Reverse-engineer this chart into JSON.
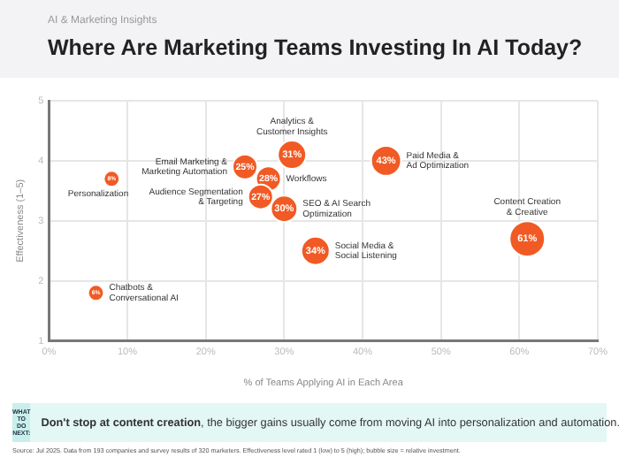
{
  "chart_data": {
    "type": "bubble",
    "subtitle": "AI & Marketing Insights",
    "title": "Where Are Marketing Teams Investing In AI Today?",
    "xlabel": "% of Teams Applying AI in Each Area",
    "ylabel": "Effectiveness (1–5)",
    "x": [
      8,
      6,
      25,
      31,
      28,
      27,
      30,
      34,
      43,
      61
    ],
    "series": [
      {
        "color": "#f15a24",
        "values": [
          3.7,
          1.8,
          3.9,
          4.1,
          3.7,
          3.4,
          3.2,
          2.5,
          4.0,
          2.7
        ],
        "sizes": [
          0.2,
          0.2,
          0.49,
          0.64,
          0.49,
          0.49,
          0.56,
          0.64,
          0.72,
          1
        ]
      }
    ],
    "xlim": [
      0,
      70
    ],
    "xticks": [
      {
        "value": 0,
        "label": "0%"
      },
      {
        "value": 10,
        "label": "10%"
      },
      {
        "value": 20,
        "label": "20%"
      },
      {
        "value": 30,
        "label": "30%"
      },
      {
        "value": 40,
        "label": "40%"
      },
      {
        "value": 50,
        "label": "50%"
      },
      {
        "value": 60,
        "label": "60%"
      },
      {
        "value": 70,
        "label": "70%"
      }
    ],
    "ylim": [
      1,
      5
    ],
    "yticks": [
      1,
      2,
      3,
      4,
      5
    ],
    "grid": true,
    "legend": false,
    "annotations": [
      {
        "text": "Personalization",
        "x": 8,
        "y": 3.7
      },
      {
        "text": "Chatbots &\nConversational AI",
        "x": 6,
        "y": 1.8
      },
      {
        "text": "Email Marketing &\nMarketing Automation",
        "x": 25,
        "y": 3.9
      },
      {
        "text": "Analytics &\nCustomer Insights",
        "x": 31,
        "y": 4.1
      },
      {
        "text": "Workflows",
        "x": 28,
        "y": 3.7
      },
      {
        "text": "Audience Segmentation\n& Targeting",
        "x": 27,
        "y": 3.4
      },
      {
        "text": "SEO & AI Search\nOptimization",
        "x": 30,
        "y": 3.2
      },
      {
        "text": "Social Media &\nSocial Listening",
        "x": 34,
        "y": 2.5
      },
      {
        "text": "Paid Media &\nAd Optimization",
        "x": 43,
        "y": 4.0
      },
      {
        "text": "Content Creation\n& Creative",
        "x": 61,
        "y": 2.7
      },
      {
        "text": "8%",
        "x": 8,
        "y": 3.7
      },
      {
        "text": "6%",
        "x": 6,
        "y": 1.8
      },
      {
        "text": "25%",
        "x": 25,
        "y": 3.9
      },
      {
        "text": "31%",
        "x": 31,
        "y": 4.1
      },
      {
        "text": "28%",
        "x": 28,
        "y": 3.7
      },
      {
        "text": "27%",
        "x": 27,
        "y": 3.4
      },
      {
        "text": "30%",
        "x": 30,
        "y": 3.2
      },
      {
        "text": "34%",
        "x": 34,
        "y": 2.5
      },
      {
        "text": "43%",
        "x": 43,
        "y": 4.0
      },
      {
        "text": "61%",
        "x": 61,
        "y": 2.7
      },
      "WHAT TO DO NEXT:",
      "Don't stop at content creation, the bigger gains usually come from moving AI into personalization and automation.",
      "Source: Jul 2025. Data from 193 companies and survey results of 320 marketers. Effectiveness level rated 1 (low) to 5 (high); bubble size = relative investment."
    ]
  }
}
